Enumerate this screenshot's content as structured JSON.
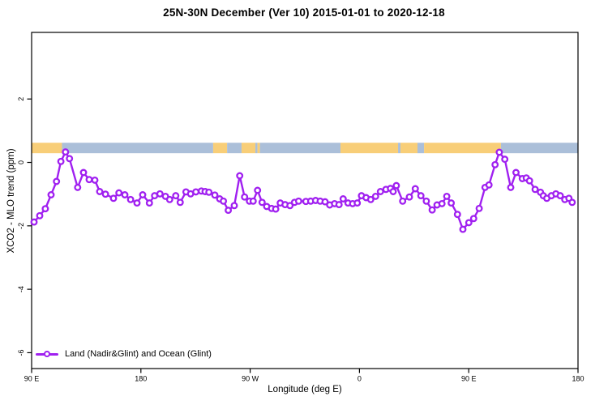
{
  "title": "25N-30N December (Ver 10)   2015-01-01 to 2020-12-18",
  "legend": {
    "label": "Land (Nadir&Glint) and Ocean (Glint)"
  },
  "colors": {
    "series": "#A020F0",
    "marker_fill": "#ffffff",
    "land_band": "#F8CE78",
    "ocean_band": "#ABBFD9",
    "axis": "#000000"
  },
  "chart_data": {
    "type": "line",
    "title": "25N-30N December (Ver 10)   2015-01-01 to 2020-12-18",
    "xlabel": "Longitude (deg E)",
    "ylabel": "XCO2 - MLO trend (ppm)",
    "xlim": [
      90,
      540
    ],
    "ylim": [
      -6.5,
      4.1
    ],
    "grid": false,
    "legend_position": "bottom-left",
    "x_ticks": [
      {
        "lon": 90,
        "label": "90 E"
      },
      {
        "lon": 180,
        "label": "180"
      },
      {
        "lon": 270,
        "label": "90 W"
      },
      {
        "lon": 360,
        "label": "0"
      },
      {
        "lon": 450,
        "label": "90 E"
      },
      {
        "lon": 540,
        "label": "180"
      }
    ],
    "y_ticks": [
      {
        "v": 2,
        "label": "2"
      },
      {
        "v": 0,
        "label": "0"
      },
      {
        "v": -2,
        "label": "-2"
      },
      {
        "v": -4,
        "label": "-4"
      },
      {
        "v": -6,
        "label": "-6"
      }
    ],
    "surface_band": {
      "value_top": 0.62,
      "value_bottom": 0.29,
      "segments": [
        {
          "start": 90,
          "end": 115,
          "type": "land"
        },
        {
          "start": 115,
          "end": 239.5,
          "type": "ocean"
        },
        {
          "start": 239.5,
          "end": 251,
          "type": "land"
        },
        {
          "start": 251,
          "end": 262.9,
          "type": "ocean"
        },
        {
          "start": 262.9,
          "end": 274.3,
          "type": "land"
        },
        {
          "start": 274.3,
          "end": 276,
          "type": "ocean"
        },
        {
          "start": 276,
          "end": 278,
          "type": "land"
        },
        {
          "start": 278,
          "end": 344.4,
          "type": "ocean"
        },
        {
          "start": 344.4,
          "end": 391.8,
          "type": "land"
        },
        {
          "start": 391.8,
          "end": 393.8,
          "type": "ocean"
        },
        {
          "start": 393.8,
          "end": 407.8,
          "type": "land"
        },
        {
          "start": 407.8,
          "end": 413.2,
          "type": "ocean"
        },
        {
          "start": 413.2,
          "end": 476.5,
          "type": "land"
        },
        {
          "start": 476.5,
          "end": 540,
          "type": "ocean"
        }
      ]
    },
    "series": [
      {
        "name": "Land (Nadir&Glint) and Ocean (Glint)",
        "points": [
          [
            92.0,
            -1.88
          ],
          [
            96.7,
            -1.68
          ],
          [
            101.3,
            -1.46
          ],
          [
            106.0,
            -1.02
          ],
          [
            110.5,
            -0.6
          ],
          [
            114.1,
            0.03
          ],
          [
            117.9,
            0.33
          ],
          [
            121.2,
            0.12
          ],
          [
            127.9,
            -0.79
          ],
          [
            132.7,
            -0.32
          ],
          [
            137.4,
            -0.54
          ],
          [
            142.1,
            -0.56
          ],
          [
            146.1,
            -0.92
          ],
          [
            150.8,
            -1.0
          ],
          [
            157.4,
            -1.13
          ],
          [
            161.9,
            -0.96
          ],
          [
            166.8,
            -1.02
          ],
          [
            171.5,
            -1.17
          ],
          [
            176.8,
            -1.28
          ],
          [
            181.5,
            -1.02
          ],
          [
            187.0,
            -1.28
          ],
          [
            191.3,
            -1.05
          ],
          [
            195.7,
            -0.99
          ],
          [
            200.2,
            -1.07
          ],
          [
            203.7,
            -1.17
          ],
          [
            208.7,
            -1.05
          ],
          [
            212.4,
            -1.26
          ],
          [
            217.1,
            -0.93
          ],
          [
            220.9,
            -0.99
          ],
          [
            225.3,
            -0.93
          ],
          [
            229.8,
            -0.9
          ],
          [
            232.9,
            -0.92
          ],
          [
            236.0,
            -0.94
          ],
          [
            240.9,
            -1.03
          ],
          [
            244.9,
            -1.15
          ],
          [
            248.0,
            -1.22
          ],
          [
            252.0,
            -1.51
          ],
          [
            256.9,
            -1.36
          ],
          [
            261.4,
            -0.42
          ],
          [
            265.4,
            -1.09
          ],
          [
            269.4,
            -1.22
          ],
          [
            272.5,
            -1.22
          ],
          [
            276.1,
            -0.88
          ],
          [
            279.8,
            -1.26
          ],
          [
            283.6,
            -1.39
          ],
          [
            287.6,
            -1.45
          ],
          [
            291.0,
            -1.47
          ],
          [
            294.8,
            -1.28
          ],
          [
            298.8,
            -1.33
          ],
          [
            302.8,
            -1.36
          ],
          [
            306.5,
            -1.26
          ],
          [
            309.9,
            -1.22
          ],
          [
            315.9,
            -1.23
          ],
          [
            319.9,
            -1.22
          ],
          [
            323.9,
            -1.2
          ],
          [
            327.7,
            -1.22
          ],
          [
            331.7,
            -1.24
          ],
          [
            335.5,
            -1.34
          ],
          [
            339.5,
            -1.3
          ],
          [
            343.2,
            -1.33
          ],
          [
            346.6,
            -1.15
          ],
          [
            350.6,
            -1.28
          ],
          [
            354.4,
            -1.3
          ],
          [
            358.2,
            -1.28
          ],
          [
            361.7,
            -1.05
          ],
          [
            365.5,
            -1.11
          ],
          [
            369.3,
            -1.17
          ],
          [
            373.3,
            -1.07
          ],
          [
            377.3,
            -0.92
          ],
          [
            381.8,
            -0.85
          ],
          [
            385.6,
            -0.82
          ],
          [
            387.8,
            -0.92
          ],
          [
            390.4,
            -0.73
          ],
          [
            395.6,
            -1.22
          ],
          [
            401.1,
            -1.09
          ],
          [
            406.0,
            -0.83
          ],
          [
            410.6,
            -1.05
          ],
          [
            415.1,
            -1.22
          ],
          [
            419.9,
            -1.5
          ],
          [
            423.9,
            -1.34
          ],
          [
            428.0,
            -1.3
          ],
          [
            431.9,
            -1.07
          ],
          [
            435.6,
            -1.28
          ],
          [
            440.7,
            -1.64
          ],
          [
            445.2,
            -2.11
          ],
          [
            450.1,
            -1.9
          ],
          [
            454.1,
            -1.77
          ],
          [
            458.6,
            -1.45
          ],
          [
            463.4,
            -0.79
          ],
          [
            466.7,
            -0.71
          ],
          [
            471.7,
            -0.07
          ],
          [
            475.2,
            0.32
          ],
          [
            479.7,
            0.1
          ],
          [
            484.6,
            -0.79
          ],
          [
            488.9,
            -0.32
          ],
          [
            494.1,
            -0.51
          ],
          [
            497.4,
            -0.49
          ],
          [
            500.1,
            -0.58
          ],
          [
            504.7,
            -0.85
          ],
          [
            509.1,
            -0.94
          ],
          [
            511.4,
            -1.05
          ],
          [
            514.3,
            -1.13
          ],
          [
            518.1,
            -1.05
          ],
          [
            521.8,
            -0.99
          ],
          [
            525.4,
            -1.05
          ],
          [
            529.1,
            -1.17
          ],
          [
            532.5,
            -1.13
          ],
          [
            535.2,
            -1.26
          ]
        ]
      }
    ]
  }
}
